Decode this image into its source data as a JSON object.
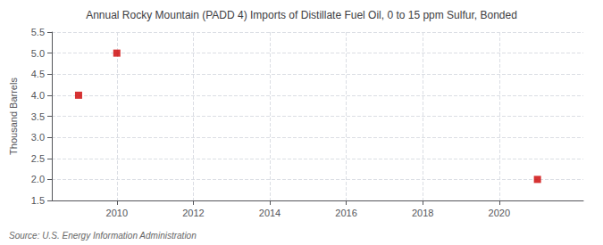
{
  "chart_data": {
    "type": "scatter",
    "title": "Annual Rocky Mountain (PADD 4) Imports of Distillate Fuel Oil, 0 to 15 ppm Sulfur, Bonded",
    "ylabel": "Thousand Barrels",
    "annotation": "Source: U.S. Energy Information Administration",
    "x": [
      2009,
      2010,
      2021
    ],
    "values": [
      4.0,
      5.0,
      2.0
    ],
    "color": "#cc0000",
    "marker": "square",
    "xlim": [
      2008.3,
      2022.2
    ],
    "ylim": [
      1.5,
      5.5
    ],
    "xticks": [
      2010,
      2012,
      2014,
      2016,
      2018,
      2020
    ],
    "yticks": [
      1.5,
      {
        "value": 2.0,
        "label": "2.0"
      },
      2.5,
      {
        "value": 3.0,
        "label": "3.0"
      },
      3.5,
      {
        "value": 4.0,
        "label": "4.0"
      },
      4.5,
      {
        "value": 5.0,
        "label": "5.0"
      },
      5.5
    ],
    "grid": true
  }
}
